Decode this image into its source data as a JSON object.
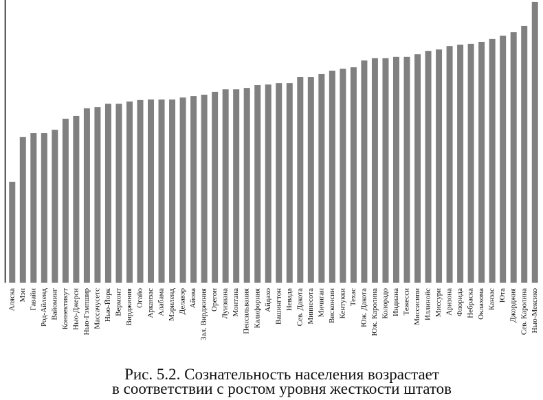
{
  "chart_data": {
    "type": "bar",
    "title": [
      "Рис. 5.2. Сознательность населения возрастает",
      "в соответствии с ростом уровня жесткости штатов"
    ],
    "categories": [
      "Аляска",
      "Мэн",
      "Гавайи",
      "Род-Айленд",
      "Вайоминг",
      "Коннектикут",
      "Нью-Джерси",
      "Нью-Гэмпшир",
      "Массачусетс",
      "Нью-Йорк",
      "Вермонт",
      "Вирджиния",
      "Огайо",
      "Арканзас",
      "Алабама",
      "Мэриленд",
      "Делавэр",
      "Айова",
      "Зал. Вирджиния",
      "Орегон",
      "Луизиана",
      "Монтана",
      "Пенсильвания",
      "Калифорния",
      "Айдахо",
      "Вашингтон",
      "Невада",
      "Сев. Дакота",
      "Миннесота",
      "Мичиган",
      "Висконсин",
      "Кентукки",
      "Техас",
      "Юж. Дакота",
      "Юж. Каролина",
      "Колорадо",
      "Индиана",
      "Тежесси",
      "Миссисипи",
      "Иллинойс",
      "Миссури",
      "Аризона",
      "Флорида",
      "Небраска",
      "Оклахома",
      "Канзас",
      "Юта",
      "Джорджия",
      "Сев. Каролина",
      "Нью-Мексико"
    ],
    "values": [
      35.7,
      51.5,
      52.9,
      52.9,
      54.1,
      58,
      59,
      61.7,
      62.1,
      63.3,
      63.3,
      64.1,
      64.6,
      64.8,
      64.8,
      64.8,
      65.5,
      66,
      66.5,
      67.5,
      68.4,
      68.4,
      68.9,
      69.9,
      70.1,
      70.6,
      70.6,
      72.8,
      72.8,
      73.8,
      75,
      75.7,
      76.2,
      78.6,
      79.4,
      79.4,
      79.9,
      79.9,
      80.8,
      82,
      82.5,
      83.7,
      84.2,
      84.5,
      85.2,
      86.2,
      87.4,
      88.6,
      90.8,
      99.3
    ],
    "color": "#808080",
    "ylim": [
      0,
      100
    ]
  }
}
